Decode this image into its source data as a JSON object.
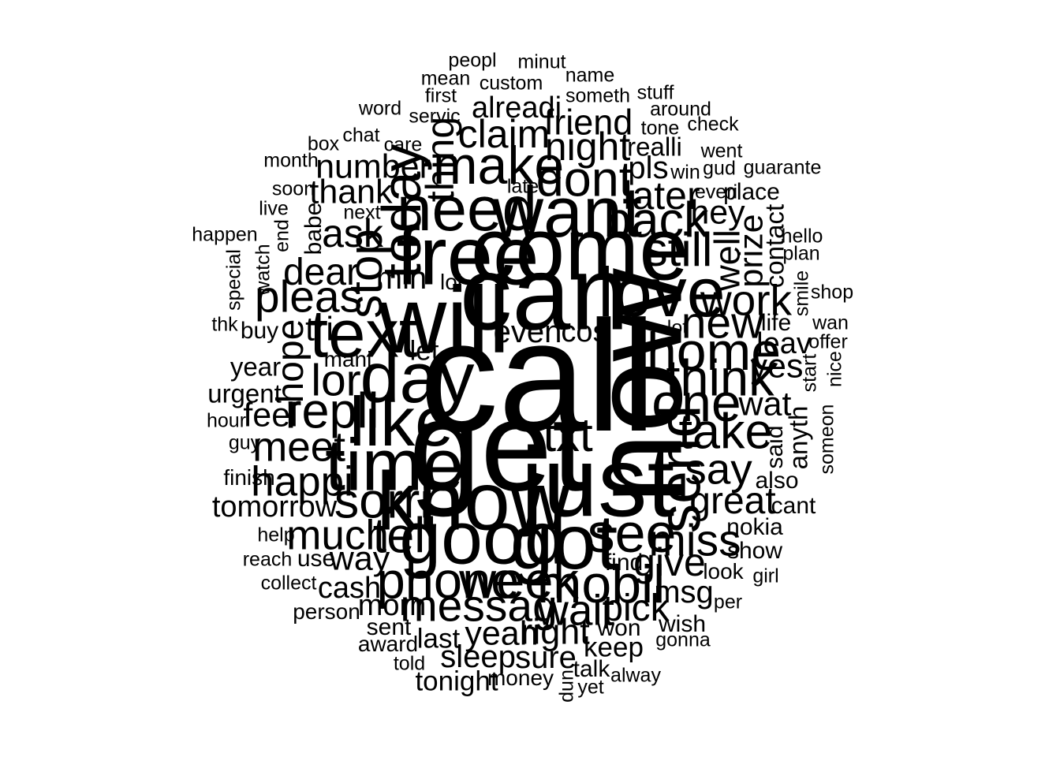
{
  "wordcloud": {
    "color": "#000000",
    "words": [
      {
        "text": "peopl",
        "weight": 1,
        "vertical": false
      },
      {
        "text": "minut",
        "weight": 1,
        "vertical": false
      },
      {
        "text": "mean",
        "weight": 1,
        "vertical": false
      },
      {
        "text": "custom",
        "weight": 1,
        "vertical": false
      },
      {
        "text": "name",
        "weight": 1,
        "vertical": false
      },
      {
        "text": "first",
        "weight": 1,
        "vertical": false
      },
      {
        "text": "someth",
        "weight": 1,
        "vertical": false
      },
      {
        "text": "stuff",
        "weight": 1,
        "vertical": false
      },
      {
        "text": "word",
        "weight": 1,
        "vertical": false
      },
      {
        "text": "alreadi",
        "weight": 1.5,
        "vertical": false
      },
      {
        "text": "around",
        "weight": 1,
        "vertical": false
      },
      {
        "text": "servic",
        "weight": 1,
        "vertical": false
      },
      {
        "text": "friend",
        "weight": 1.8,
        "vertical": false
      },
      {
        "text": "tone",
        "weight": 1,
        "vertical": false
      },
      {
        "text": "check",
        "weight": 1,
        "vertical": false
      },
      {
        "text": "claim",
        "weight": 2,
        "vertical": false
      },
      {
        "text": "chat",
        "weight": 1,
        "vertical": false
      },
      {
        "text": "box",
        "weight": 1,
        "vertical": false
      },
      {
        "text": "care",
        "weight": 1,
        "vertical": false
      },
      {
        "text": "night",
        "weight": 2,
        "vertical": false
      },
      {
        "text": "realli",
        "weight": 1.3,
        "vertical": false
      },
      {
        "text": "went",
        "weight": 1,
        "vertical": false
      },
      {
        "text": "thing",
        "weight": 2,
        "vertical": true
      },
      {
        "text": "month",
        "weight": 1,
        "vertical": false
      },
      {
        "text": "number",
        "weight": 1.7,
        "vertical": false
      },
      {
        "text": "make",
        "weight": 2.7,
        "vertical": false
      },
      {
        "text": "pls",
        "weight": 1.6,
        "vertical": false
      },
      {
        "text": "win",
        "weight": 1,
        "vertical": false
      },
      {
        "text": "gud",
        "weight": 1,
        "vertical": false
      },
      {
        "text": "guarante",
        "weight": 1,
        "vertical": false
      },
      {
        "text": "dont",
        "weight": 2.5,
        "vertical": false
      },
      {
        "text": "late",
        "weight": 1,
        "vertical": false
      },
      {
        "text": "soon",
        "weight": 1,
        "vertical": false
      },
      {
        "text": "thank",
        "weight": 1.7,
        "vertical": false
      },
      {
        "text": "today",
        "weight": 2.8,
        "vertical": true
      },
      {
        "text": "later",
        "weight": 2,
        "vertical": false
      },
      {
        "text": "everi",
        "weight": 1,
        "vertical": false
      },
      {
        "text": "place",
        "weight": 1.2,
        "vertical": false
      },
      {
        "text": "need",
        "weight": 3.2,
        "vertical": false
      },
      {
        "text": "want",
        "weight": 3.6,
        "vertical": false
      },
      {
        "text": "live",
        "weight": 1,
        "vertical": false
      },
      {
        "text": "babe",
        "weight": 1.2,
        "vertical": true
      },
      {
        "text": "next",
        "weight": 1,
        "vertical": false
      },
      {
        "text": "hey",
        "weight": 1.7,
        "vertical": false
      },
      {
        "text": "back",
        "weight": 2.5,
        "vertical": false
      },
      {
        "text": "contact",
        "weight": 1.3,
        "vertical": true
      },
      {
        "text": "ask",
        "weight": 2,
        "vertical": false
      },
      {
        "text": "happen",
        "weight": 1,
        "vertical": false
      },
      {
        "text": "end",
        "weight": 1,
        "vertical": true
      },
      {
        "text": "hello",
        "weight": 1,
        "vertical": false
      },
      {
        "text": "prize",
        "weight": 1.7,
        "vertical": true
      },
      {
        "text": "free",
        "weight": 4.2,
        "vertical": false
      },
      {
        "text": "come",
        "weight": 4.5,
        "vertical": false
      },
      {
        "text": "stop",
        "weight": 2.4,
        "vertical": true
      },
      {
        "text": "still",
        "weight": 2.4,
        "vertical": false
      },
      {
        "text": "plan",
        "weight": 1,
        "vertical": false
      },
      {
        "text": "special",
        "weight": 1,
        "vertical": true
      },
      {
        "text": "watch",
        "weight": 1,
        "vertical": true
      },
      {
        "text": "well",
        "weight": 1.8,
        "vertical": true
      },
      {
        "text": "dear",
        "weight": 1.9,
        "vertical": false
      },
      {
        "text": "min",
        "weight": 1.6,
        "vertical": false
      },
      {
        "text": "smile",
        "weight": 1,
        "vertical": true
      },
      {
        "text": "pleas",
        "weight": 2.3,
        "vertical": false
      },
      {
        "text": "lol",
        "weight": 1.1,
        "vertical": false
      },
      {
        "text": "can",
        "weight": 5.3,
        "vertical": false
      },
      {
        "text": "love",
        "weight": 3.5,
        "vertical": false
      },
      {
        "text": "shop",
        "weight": 1,
        "vertical": false
      },
      {
        "text": "work",
        "weight": 2.2,
        "vertical": false
      },
      {
        "text": "will",
        "weight": 4.8,
        "vertical": false
      },
      {
        "text": "thk",
        "weight": 1,
        "vertical": false
      },
      {
        "text": "buy",
        "weight": 1.2,
        "vertical": false
      },
      {
        "text": "new",
        "weight": 2.3,
        "vertical": false
      },
      {
        "text": "life",
        "weight": 1.2,
        "vertical": false
      },
      {
        "text": "wan",
        "weight": 1,
        "vertical": false
      },
      {
        "text": "lot",
        "weight": 1,
        "vertical": false
      },
      {
        "text": "tri",
        "weight": 1.7,
        "vertical": false
      },
      {
        "text": "even",
        "weight": 1.6,
        "vertical": false
      },
      {
        "text": "cos",
        "weight": 1.5,
        "vertical": false
      },
      {
        "text": "text",
        "weight": 3.4,
        "vertical": false
      },
      {
        "text": "hope",
        "weight": 1.9,
        "vertical": true
      },
      {
        "text": "leav",
        "weight": 1.5,
        "vertical": false
      },
      {
        "text": "offer",
        "weight": 1,
        "vertical": false
      },
      {
        "text": "let",
        "weight": 1.4,
        "vertical": false
      },
      {
        "text": "home",
        "weight": 2.7,
        "vertical": false
      },
      {
        "text": "mani",
        "weight": 1.1,
        "vertical": false
      },
      {
        "text": "nice",
        "weight": 1,
        "vertical": true
      },
      {
        "text": "year",
        "weight": 1.3,
        "vertical": false
      },
      {
        "text": "call",
        "weight": 8,
        "vertical": false
      },
      {
        "text": "now",
        "weight": 6.5,
        "vertical": true
      },
      {
        "text": "yes",
        "weight": 1.7,
        "vertical": false
      },
      {
        "text": "lor",
        "weight": 2.3,
        "vertical": false
      },
      {
        "text": "day",
        "weight": 3.6,
        "vertical": false
      },
      {
        "text": "start",
        "weight": 1,
        "vertical": true
      },
      {
        "text": "think",
        "weight": 2.6,
        "vertical": false
      },
      {
        "text": "urgent",
        "weight": 1.3,
        "vertical": false
      },
      {
        "text": "one",
        "weight": 2.7,
        "vertical": false
      },
      {
        "text": "wat",
        "weight": 1.7,
        "vertical": false
      },
      {
        "text": "repli",
        "weight": 2.5,
        "vertical": false
      },
      {
        "text": "hour",
        "weight": 1,
        "vertical": false
      },
      {
        "text": "feel",
        "weight": 1.7,
        "vertical": false
      },
      {
        "text": "like",
        "weight": 3.5,
        "vertical": false
      },
      {
        "text": "someon",
        "weight": 1,
        "vertical": true
      },
      {
        "text": "anyth",
        "weight": 1.3,
        "vertical": true
      },
      {
        "text": "txt",
        "weight": 2.4,
        "vertical": false
      },
      {
        "text": "take",
        "weight": 2.5,
        "vertical": false
      },
      {
        "text": "said",
        "weight": 1.2,
        "vertical": true
      },
      {
        "text": "get",
        "weight": 6.5,
        "vertical": false
      },
      {
        "text": "send",
        "weight": 3,
        "vertical": true
      },
      {
        "text": "guy",
        "weight": 1,
        "vertical": false
      },
      {
        "text": "meet",
        "weight": 2.1,
        "vertical": false
      },
      {
        "text": "time",
        "weight": 3.7,
        "vertical": false
      },
      {
        "text": "say",
        "weight": 2.2,
        "vertical": false
      },
      {
        "text": "finish",
        "weight": 1.1,
        "vertical": false
      },
      {
        "text": "happi",
        "weight": 2.1,
        "vertical": false
      },
      {
        "text": "also",
        "weight": 1.2,
        "vertical": false
      },
      {
        "text": "just",
        "weight": 5,
        "vertical": false
      },
      {
        "text": "sorri",
        "weight": 2.5,
        "vertical": false
      },
      {
        "text": "know",
        "weight": 4.2,
        "vertical": false
      },
      {
        "text": "great",
        "weight": 1.9,
        "vertical": false
      },
      {
        "text": "tomorrow",
        "weight": 1.5,
        "vertical": false
      },
      {
        "text": "cant",
        "weight": 1.2,
        "vertical": false
      },
      {
        "text": "nokia",
        "weight": 1.2,
        "vertical": false
      },
      {
        "text": "help",
        "weight": 1,
        "vertical": false
      },
      {
        "text": "much",
        "weight": 2.1,
        "vertical": false
      },
      {
        "text": "tell",
        "weight": 2.5,
        "vertical": false
      },
      {
        "text": "good",
        "weight": 3.8,
        "vertical": false
      },
      {
        "text": "got",
        "weight": 3.9,
        "vertical": false
      },
      {
        "text": "see",
        "weight": 2.8,
        "vertical": false
      },
      {
        "text": "miss",
        "weight": 2.3,
        "vertical": false
      },
      {
        "text": "show",
        "weight": 1.2,
        "vertical": false
      },
      {
        "text": "reach",
        "weight": 1,
        "vertical": false
      },
      {
        "text": "use",
        "weight": 1.2,
        "vertical": false
      },
      {
        "text": "way",
        "weight": 1.7,
        "vertical": false
      },
      {
        "text": "find",
        "weight": 1.2,
        "vertical": false
      },
      {
        "text": "give",
        "weight": 2,
        "vertical": false
      },
      {
        "text": "look",
        "weight": 1.1,
        "vertical": false
      },
      {
        "text": "collect",
        "weight": 1,
        "vertical": false
      },
      {
        "text": "phone",
        "weight": 2.6,
        "vertical": false
      },
      {
        "text": "week",
        "weight": 2.6,
        "vertical": false
      },
      {
        "text": "mobil",
        "weight": 2.7,
        "vertical": false
      },
      {
        "text": "girl",
        "weight": 1,
        "vertical": false
      },
      {
        "text": "cash",
        "weight": 1.5,
        "vertical": false
      },
      {
        "text": "msg",
        "weight": 1.6,
        "vertical": false
      },
      {
        "text": "person",
        "weight": 1.1,
        "vertical": false
      },
      {
        "text": "morn",
        "weight": 1.5,
        "vertical": false
      },
      {
        "text": "messag",
        "weight": 2.3,
        "vertical": false
      },
      {
        "text": "wait",
        "weight": 2.2,
        "vertical": false
      },
      {
        "text": "pick",
        "weight": 1.9,
        "vertical": false
      },
      {
        "text": "per",
        "weight": 1,
        "vertical": false
      },
      {
        "text": "sent",
        "weight": 1.2,
        "vertical": false
      },
      {
        "text": "wish",
        "weight": 1.2,
        "vertical": false
      },
      {
        "text": "won",
        "weight": 1.2,
        "vertical": false
      },
      {
        "text": "last",
        "weight": 1.4,
        "vertical": false
      },
      {
        "text": "yeah",
        "weight": 1.7,
        "vertical": false
      },
      {
        "text": "right",
        "weight": 1.8,
        "vertical": false
      },
      {
        "text": "award",
        "weight": 1.1,
        "vertical": false
      },
      {
        "text": "gonna",
        "weight": 1,
        "vertical": false
      },
      {
        "text": "keep",
        "weight": 1.4,
        "vertical": false
      },
      {
        "text": "sleep",
        "weight": 1.6,
        "vertical": false
      },
      {
        "text": "sure",
        "weight": 1.6,
        "vertical": false
      },
      {
        "text": "told",
        "weight": 1,
        "vertical": false
      },
      {
        "text": "talk",
        "weight": 1.2,
        "vertical": false
      },
      {
        "text": "dun",
        "weight": 1,
        "vertical": true
      },
      {
        "text": "money",
        "weight": 1.1,
        "vertical": false
      },
      {
        "text": "alway",
        "weight": 1,
        "vertical": false
      },
      {
        "text": "tonight",
        "weight": 1.4,
        "vertical": false
      },
      {
        "text": "yet",
        "weight": 1,
        "vertical": false
      }
    ]
  }
}
